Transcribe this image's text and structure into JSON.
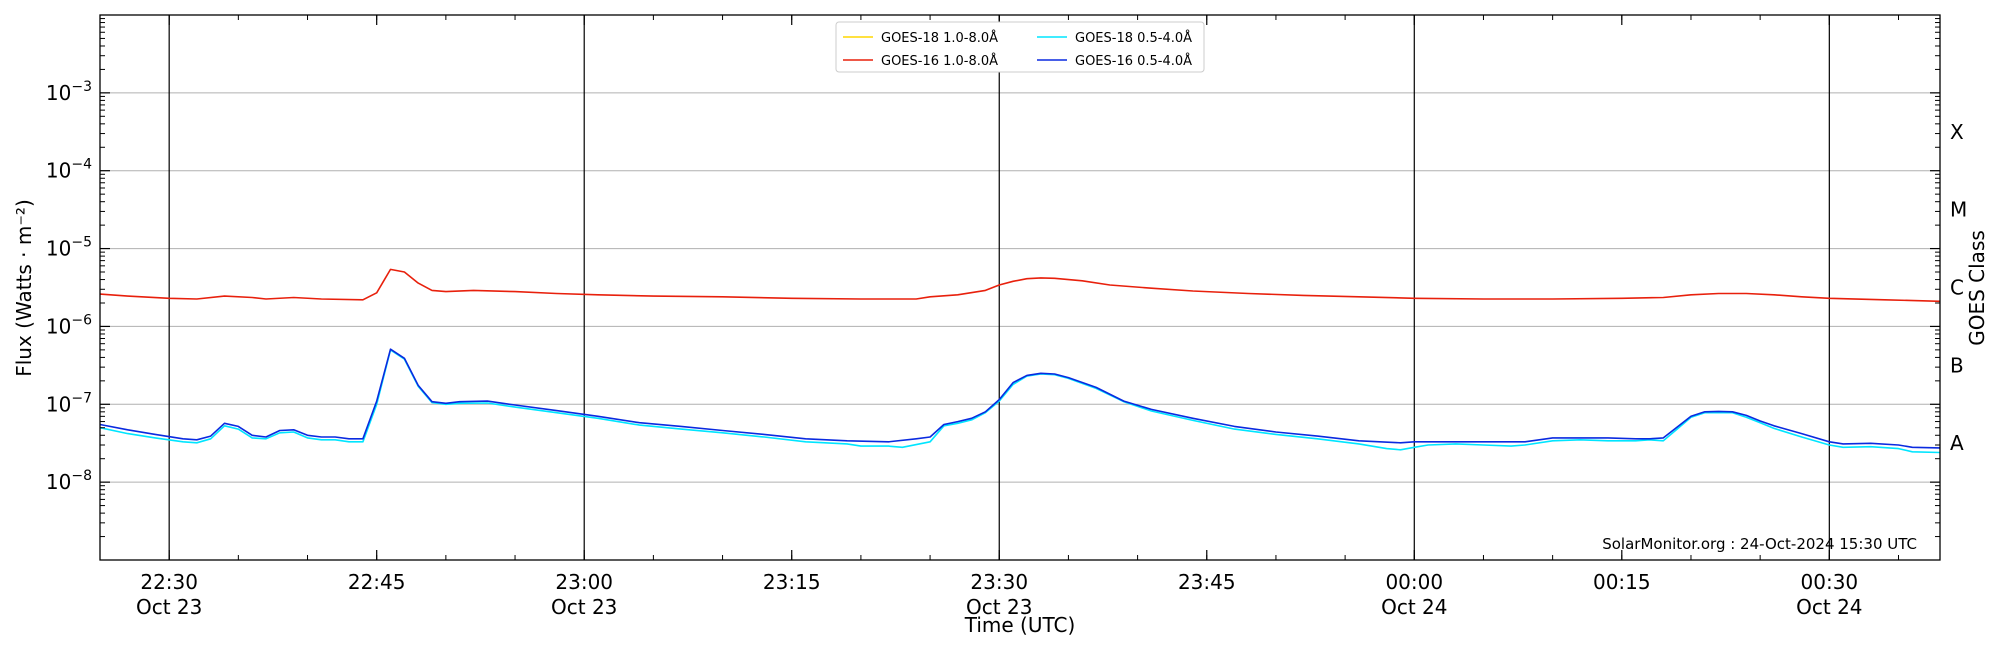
{
  "chart_data": {
    "type": "line",
    "xlabel": "Time (UTC)",
    "ylabel": "Flux (Watts · m⁻²)",
    "y2label": "GOES Class",
    "scale_y": "log",
    "ylim": [
      1e-09,
      0.01
    ],
    "x_range": [
      "2024-10-23 22:25",
      "2024-10-24 00:38"
    ],
    "grid": "horizontal",
    "legend_position": "top-center",
    "annotation": "SolarMonitor.org : 24-Oct-2024 15:30 UTC",
    "x_ticks": [
      {
        "time": "2024-10-23 22:30",
        "line1": "22:30",
        "line2": "Oct 23",
        "vline": true
      },
      {
        "time": "2024-10-23 22:45",
        "line1": "22:45",
        "line2": "",
        "vline": false
      },
      {
        "time": "2024-10-23 23:00",
        "line1": "23:00",
        "line2": "Oct 23",
        "vline": true
      },
      {
        "time": "2024-10-23 23:15",
        "line1": "23:15",
        "line2": "",
        "vline": false
      },
      {
        "time": "2024-10-23 23:30",
        "line1": "23:30",
        "line2": "Oct 23",
        "vline": true
      },
      {
        "time": "2024-10-23 23:45",
        "line1": "23:45",
        "line2": "",
        "vline": false
      },
      {
        "time": "2024-10-24 00:00",
        "line1": "00:00",
        "line2": "Oct 24",
        "vline": true
      },
      {
        "time": "2024-10-24 00:15",
        "line1": "00:15",
        "line2": "",
        "vline": false
      },
      {
        "time": "2024-10-24 00:30",
        "line1": "00:30",
        "line2": "Oct 24",
        "vline": true
      }
    ],
    "y_ticks": [
      {
        "value": 1e-08,
        "base": "10",
        "exp": "−8"
      },
      {
        "value": 1e-07,
        "base": "10",
        "exp": "−7"
      },
      {
        "value": 1e-06,
        "base": "10",
        "exp": "−6"
      },
      {
        "value": 1e-05,
        "base": "10",
        "exp": "−5"
      },
      {
        "value": 0.0001,
        "base": "10",
        "exp": "−4"
      },
      {
        "value": 0.001,
        "base": "10",
        "exp": "−3"
      }
    ],
    "goes_classes": [
      {
        "label": "A",
        "value": 3.16e-08
      },
      {
        "label": "B",
        "value": 3.16e-07
      },
      {
        "label": "C",
        "value": 3.16e-06
      },
      {
        "label": "M",
        "value": 3.16e-05
      },
      {
        "label": "X",
        "value": 0.000316
      }
    ],
    "series": [
      {
        "name": "GOES-18 1.0-8.0Å",
        "color": "#ffd700",
        "points": []
      },
      {
        "name": "GOES-18 0.5-4.0Å",
        "color": "#00e5ff",
        "points": [
          [
            "2024-10-23 22:25",
            5e-08
          ],
          [
            "2024-10-23 22:27",
            4.2e-08
          ],
          [
            "2024-10-23 22:29",
            3.7e-08
          ],
          [
            "2024-10-23 22:31",
            3.3e-08
          ],
          [
            "2024-10-23 22:32",
            3.2e-08
          ],
          [
            "2024-10-23 22:33",
            3.6e-08
          ],
          [
            "2024-10-23 22:34",
            5.3e-08
          ],
          [
            "2024-10-23 22:35",
            4.8e-08
          ],
          [
            "2024-10-23 22:36",
            3.7e-08
          ],
          [
            "2024-10-23 22:37",
            3.6e-08
          ],
          [
            "2024-10-23 22:38",
            4.3e-08
          ],
          [
            "2024-10-23 22:39",
            4.4e-08
          ],
          [
            "2024-10-23 22:40",
            3.7e-08
          ],
          [
            "2024-10-23 22:41",
            3.5e-08
          ],
          [
            "2024-10-23 22:42",
            3.5e-08
          ],
          [
            "2024-10-23 22:43",
            3.3e-08
          ],
          [
            "2024-10-23 22:44",
            3.3e-08
          ],
          [
            "2024-10-23 22:45",
            1e-07
          ],
          [
            "2024-10-23 22:46",
            5e-07
          ],
          [
            "2024-10-23 22:47",
            3.8e-07
          ],
          [
            "2024-10-23 22:48",
            1.7e-07
          ],
          [
            "2024-10-23 22:49",
            1.05e-07
          ],
          [
            "2024-10-23 22:50",
            1e-07
          ],
          [
            "2024-10-23 22:51",
            1.03e-07
          ],
          [
            "2024-10-23 22:53",
            1.04e-07
          ],
          [
            "2024-10-23 22:55",
            9.2e-08
          ],
          [
            "2024-10-23 22:58",
            7.8e-08
          ],
          [
            "2024-10-23 23:01",
            6.6e-08
          ],
          [
            "2024-10-23 23:04",
            5.4e-08
          ],
          [
            "2024-10-23 23:07",
            4.8e-08
          ],
          [
            "2024-10-23 23:10",
            4.3e-08
          ],
          [
            "2024-10-23 23:13",
            3.8e-08
          ],
          [
            "2024-10-23 23:16",
            3.3e-08
          ],
          [
            "2024-10-23 23:19",
            3.1e-08
          ],
          [
            "2024-10-23 23:20",
            2.9e-08
          ],
          [
            "2024-10-23 23:22",
            2.9e-08
          ],
          [
            "2024-10-23 23:23",
            2.8e-08
          ],
          [
            "2024-10-23 23:25",
            3.3e-08
          ],
          [
            "2024-10-23 23:26",
            5.3e-08
          ],
          [
            "2024-10-23 23:27",
            5.7e-08
          ],
          [
            "2024-10-23 23:28",
            6.3e-08
          ],
          [
            "2024-10-23 23:29",
            7.8e-08
          ],
          [
            "2024-10-23 23:30",
            1.1e-07
          ],
          [
            "2024-10-23 23:31",
            1.8e-07
          ],
          [
            "2024-10-23 23:32",
            2.3e-07
          ],
          [
            "2024-10-23 23:33",
            2.45e-07
          ],
          [
            "2024-10-23 23:34",
            2.4e-07
          ],
          [
            "2024-10-23 23:35",
            2.15e-07
          ],
          [
            "2024-10-23 23:37",
            1.6e-07
          ],
          [
            "2024-10-23 23:39",
            1.08e-07
          ],
          [
            "2024-10-23 23:41",
            8.2e-08
          ],
          [
            "2024-10-23 23:44",
            6.2e-08
          ],
          [
            "2024-10-23 23:47",
            4.8e-08
          ],
          [
            "2024-10-23 23:50",
            4.1e-08
          ],
          [
            "2024-10-23 23:53",
            3.6e-08
          ],
          [
            "2024-10-23 23:56",
            3.1e-08
          ],
          [
            "2024-10-23 23:58",
            2.7e-08
          ],
          [
            "2024-10-23 23:59",
            2.6e-08
          ],
          [
            "2024-10-24 00:00",
            2.8e-08
          ],
          [
            "2024-10-24 00:01",
            3e-08
          ],
          [
            "2024-10-24 00:03",
            3.1e-08
          ],
          [
            "2024-10-24 00:05",
            3e-08
          ],
          [
            "2024-10-24 00:07",
            2.9e-08
          ],
          [
            "2024-10-24 00:08",
            3e-08
          ],
          [
            "2024-10-24 00:10",
            3.4e-08
          ],
          [
            "2024-10-24 00:12",
            3.5e-08
          ],
          [
            "2024-10-24 00:14",
            3.4e-08
          ],
          [
            "2024-10-24 00:16",
            3.4e-08
          ],
          [
            "2024-10-24 00:17",
            3.5e-08
          ],
          [
            "2024-10-24 00:18",
            3.4e-08
          ],
          [
            "2024-10-24 00:19",
            4.8e-08
          ],
          [
            "2024-10-24 00:20",
            6.8e-08
          ],
          [
            "2024-10-24 00:21",
            7.8e-08
          ],
          [
            "2024-10-24 00:22",
            7.8e-08
          ],
          [
            "2024-10-24 00:23",
            7.8e-08
          ],
          [
            "2024-10-24 00:24",
            6.8e-08
          ],
          [
            "2024-10-24 00:25",
            5.8e-08
          ],
          [
            "2024-10-24 00:26",
            4.9e-08
          ],
          [
            "2024-10-24 00:28",
            3.8e-08
          ],
          [
            "2024-10-24 00:30",
            3e-08
          ],
          [
            "2024-10-24 00:31",
            2.8e-08
          ],
          [
            "2024-10-24 00:33",
            2.85e-08
          ],
          [
            "2024-10-24 00:35",
            2.7e-08
          ],
          [
            "2024-10-24 00:36",
            2.45e-08
          ],
          [
            "2024-10-24 00:38",
            2.4e-08
          ]
        ]
      },
      {
        "name": "GOES-16 1.0-8.0Å",
        "color": "#e8200c",
        "points": [
          [
            "2024-10-23 22:25",
            2.6e-06
          ],
          [
            "2024-10-23 22:27",
            2.45e-06
          ],
          [
            "2024-10-23 22:30",
            2.3e-06
          ],
          [
            "2024-10-23 22:32",
            2.25e-06
          ],
          [
            "2024-10-23 22:34",
            2.45e-06
          ],
          [
            "2024-10-23 22:36",
            2.35e-06
          ],
          [
            "2024-10-23 22:37",
            2.25e-06
          ],
          [
            "2024-10-23 22:39",
            2.35e-06
          ],
          [
            "2024-10-23 22:41",
            2.25e-06
          ],
          [
            "2024-10-23 22:44",
            2.2e-06
          ],
          [
            "2024-10-23 22:45",
            2.7e-06
          ],
          [
            "2024-10-23 22:46",
            5.4e-06
          ],
          [
            "2024-10-23 22:47",
            5e-06
          ],
          [
            "2024-10-23 22:48",
            3.6e-06
          ],
          [
            "2024-10-23 22:49",
            2.9e-06
          ],
          [
            "2024-10-23 22:50",
            2.8e-06
          ],
          [
            "2024-10-23 22:52",
            2.9e-06
          ],
          [
            "2024-10-23 22:55",
            2.8e-06
          ],
          [
            "2024-10-23 22:58",
            2.65e-06
          ],
          [
            "2024-10-23 23:01",
            2.55e-06
          ],
          [
            "2024-10-23 23:05",
            2.45e-06
          ],
          [
            "2024-10-23 23:10",
            2.4e-06
          ],
          [
            "2024-10-23 23:15",
            2.3e-06
          ],
          [
            "2024-10-23 23:20",
            2.25e-06
          ],
          [
            "2024-10-23 23:24",
            2.25e-06
          ],
          [
            "2024-10-23 23:25",
            2.4e-06
          ],
          [
            "2024-10-23 23:27",
            2.55e-06
          ],
          [
            "2024-10-23 23:29",
            2.9e-06
          ],
          [
            "2024-10-23 23:30",
            3.4e-06
          ],
          [
            "2024-10-23 23:31",
            3.8e-06
          ],
          [
            "2024-10-23 23:32",
            4.1e-06
          ],
          [
            "2024-10-23 23:33",
            4.2e-06
          ],
          [
            "2024-10-23 23:34",
            4.15e-06
          ],
          [
            "2024-10-23 23:36",
            3.85e-06
          ],
          [
            "2024-10-23 23:38",
            3.4e-06
          ],
          [
            "2024-10-23 23:41",
            3.1e-06
          ],
          [
            "2024-10-23 23:44",
            2.85e-06
          ],
          [
            "2024-10-23 23:48",
            2.65e-06
          ],
          [
            "2024-10-23 23:52",
            2.5e-06
          ],
          [
            "2024-10-23 23:56",
            2.4e-06
          ],
          [
            "2024-10-24 00:00",
            2.3e-06
          ],
          [
            "2024-10-24 00:05",
            2.25e-06
          ],
          [
            "2024-10-24 00:10",
            2.25e-06
          ],
          [
            "2024-10-24 00:15",
            2.3e-06
          ],
          [
            "2024-10-24 00:18",
            2.35e-06
          ],
          [
            "2024-10-24 00:20",
            2.55e-06
          ],
          [
            "2024-10-24 00:22",
            2.65e-06
          ],
          [
            "2024-10-24 00:24",
            2.65e-06
          ],
          [
            "2024-10-24 00:26",
            2.55e-06
          ],
          [
            "2024-10-24 00:28",
            2.4e-06
          ],
          [
            "2024-10-24 00:30",
            2.3e-06
          ],
          [
            "2024-10-24 00:34",
            2.2e-06
          ],
          [
            "2024-10-24 00:38",
            2.1e-06
          ]
        ]
      },
      {
        "name": "GOES-16 0.5-4.0Å",
        "color": "#0a2ae0",
        "points": [
          [
            "2024-10-23 22:25",
            5.5e-08
          ],
          [
            "2024-10-23 22:27",
            4.7e-08
          ],
          [
            "2024-10-23 22:29",
            4.1e-08
          ],
          [
            "2024-10-23 22:31",
            3.6e-08
          ],
          [
            "2024-10-23 22:32",
            3.5e-08
          ],
          [
            "2024-10-23 22:33",
            3.9e-08
          ],
          [
            "2024-10-23 22:34",
            5.7e-08
          ],
          [
            "2024-10-23 22:35",
            5.2e-08
          ],
          [
            "2024-10-23 22:36",
            4e-08
          ],
          [
            "2024-10-23 22:37",
            3.8e-08
          ],
          [
            "2024-10-23 22:38",
            4.6e-08
          ],
          [
            "2024-10-23 22:39",
            4.7e-08
          ],
          [
            "2024-10-23 22:40",
            4e-08
          ],
          [
            "2024-10-23 22:41",
            3.8e-08
          ],
          [
            "2024-10-23 22:42",
            3.8e-08
          ],
          [
            "2024-10-23 22:43",
            3.6e-08
          ],
          [
            "2024-10-23 22:44",
            3.6e-08
          ],
          [
            "2024-10-23 22:45",
            1.1e-07
          ],
          [
            "2024-10-23 22:46",
            5.1e-07
          ],
          [
            "2024-10-23 22:47",
            3.9e-07
          ],
          [
            "2024-10-23 22:48",
            1.75e-07
          ],
          [
            "2024-10-23 22:49",
            1.08e-07
          ],
          [
            "2024-10-23 22:50",
            1.03e-07
          ],
          [
            "2024-10-23 22:51",
            1.08e-07
          ],
          [
            "2024-10-23 22:53",
            1.1e-07
          ],
          [
            "2024-10-23 22:55",
            9.8e-08
          ],
          [
            "2024-10-23 22:58",
            8.3e-08
          ],
          [
            "2024-10-23 23:01",
            7e-08
          ],
          [
            "2024-10-23 23:04",
            5.8e-08
          ],
          [
            "2024-10-23 23:07",
            5.2e-08
          ],
          [
            "2024-10-23 23:10",
            4.6e-08
          ],
          [
            "2024-10-23 23:13",
            4.1e-08
          ],
          [
            "2024-10-23 23:16",
            3.6e-08
          ],
          [
            "2024-10-23 23:19",
            3.4e-08
          ],
          [
            "2024-10-23 23:22",
            3.3e-08
          ],
          [
            "2024-10-23 23:24",
            3.6e-08
          ],
          [
            "2024-10-23 23:25",
            3.8e-08
          ],
          [
            "2024-10-23 23:26",
            5.5e-08
          ],
          [
            "2024-10-23 23:27",
            6e-08
          ],
          [
            "2024-10-23 23:28",
            6.6e-08
          ],
          [
            "2024-10-23 23:29",
            8e-08
          ],
          [
            "2024-10-23 23:30",
            1.15e-07
          ],
          [
            "2024-10-23 23:31",
            1.9e-07
          ],
          [
            "2024-10-23 23:32",
            2.35e-07
          ],
          [
            "2024-10-23 23:33",
            2.5e-07
          ],
          [
            "2024-10-23 23:34",
            2.45e-07
          ],
          [
            "2024-10-23 23:35",
            2.2e-07
          ],
          [
            "2024-10-23 23:37",
            1.65e-07
          ],
          [
            "2024-10-23 23:39",
            1.1e-07
          ],
          [
            "2024-10-23 23:41",
            8.6e-08
          ],
          [
            "2024-10-23 23:44",
            6.6e-08
          ],
          [
            "2024-10-23 23:47",
            5.2e-08
          ],
          [
            "2024-10-23 23:50",
            4.4e-08
          ],
          [
            "2024-10-23 23:53",
            3.9e-08
          ],
          [
            "2024-10-23 23:56",
            3.4e-08
          ],
          [
            "2024-10-23 23:59",
            3.2e-08
          ],
          [
            "2024-10-24 00:00",
            3.3e-08
          ],
          [
            "2024-10-24 00:02",
            3.3e-08
          ],
          [
            "2024-10-24 00:05",
            3.3e-08
          ],
          [
            "2024-10-24 00:08",
            3.3e-08
          ],
          [
            "2024-10-24 00:10",
            3.7e-08
          ],
          [
            "2024-10-24 00:12",
            3.7e-08
          ],
          [
            "2024-10-24 00:14",
            3.7e-08
          ],
          [
            "2024-10-24 00:16",
            3.6e-08
          ],
          [
            "2024-10-24 00:17",
            3.6e-08
          ],
          [
            "2024-10-24 00:18",
            3.7e-08
          ],
          [
            "2024-10-24 00:19",
            5.1e-08
          ],
          [
            "2024-10-24 00:20",
            7e-08
          ],
          [
            "2024-10-24 00:21",
            8e-08
          ],
          [
            "2024-10-24 00:22",
            8.1e-08
          ],
          [
            "2024-10-24 00:23",
            8e-08
          ],
          [
            "2024-10-24 00:24",
            7.2e-08
          ],
          [
            "2024-10-24 00:25",
            6.1e-08
          ],
          [
            "2024-10-24 00:26",
            5.3e-08
          ],
          [
            "2024-10-24 00:28",
            4.2e-08
          ],
          [
            "2024-10-24 00:30",
            3.3e-08
          ],
          [
            "2024-10-24 00:31",
            3.1e-08
          ],
          [
            "2024-10-24 00:33",
            3.15e-08
          ],
          [
            "2024-10-24 00:35",
            3e-08
          ],
          [
            "2024-10-24 00:36",
            2.8e-08
          ],
          [
            "2024-10-24 00:38",
            2.75e-08
          ]
        ]
      }
    ]
  }
}
